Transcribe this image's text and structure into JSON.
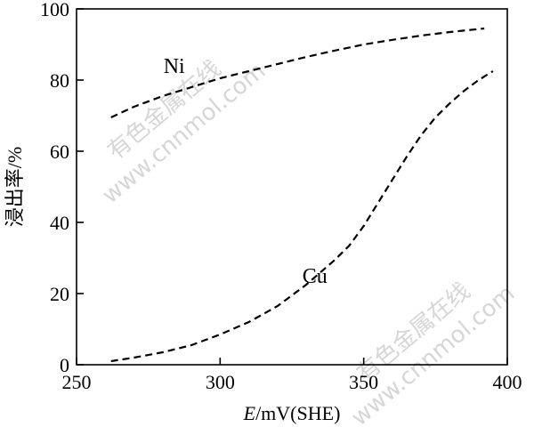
{
  "chart_data": {
    "type": "line",
    "xlabel_italic": "E",
    "xlabel_rest": "/mV(SHE)",
    "ylabel": "浸出率/%",
    "xlim": [
      250,
      400
    ],
    "ylim": [
      0,
      100
    ],
    "xticks": [
      250,
      300,
      350,
      400
    ],
    "yticks": [
      0,
      20,
      40,
      60,
      80,
      100
    ],
    "grid": false,
    "series": [
      {
        "name": "Ni",
        "style": "dashed",
        "x": [
          262,
          270,
          280,
          290,
          300,
          310,
          320,
          330,
          340,
          350,
          360,
          370,
          380,
          392
        ],
        "y": [
          69.5,
          72.5,
          75.5,
          78,
          80.5,
          82.5,
          84.5,
          86.5,
          88.3,
          90,
          91.3,
          92.5,
          93.5,
          94.5
        ]
      },
      {
        "name": "Cu",
        "style": "dashed",
        "x": [
          262,
          270,
          280,
          290,
          300,
          310,
          320,
          330,
          340,
          345,
          350,
          355,
          360,
          365,
          370,
          375,
          380,
          385,
          390,
          395
        ],
        "y": [
          1,
          2,
          3.5,
          5.5,
          8.5,
          12,
          16.5,
          22.5,
          29.5,
          33.5,
          39,
          45.5,
          52,
          58.5,
          64.5,
          69.5,
          73.5,
          77,
          80,
          82.5
        ]
      }
    ],
    "annotations": [
      {
        "text": "Ni",
        "x": 284,
        "y": 82
      },
      {
        "text": "Cu",
        "x": 333,
        "y": 23
      }
    ]
  },
  "watermarks": [
    "有色金属在线",
    "www.cnnmol.com"
  ]
}
